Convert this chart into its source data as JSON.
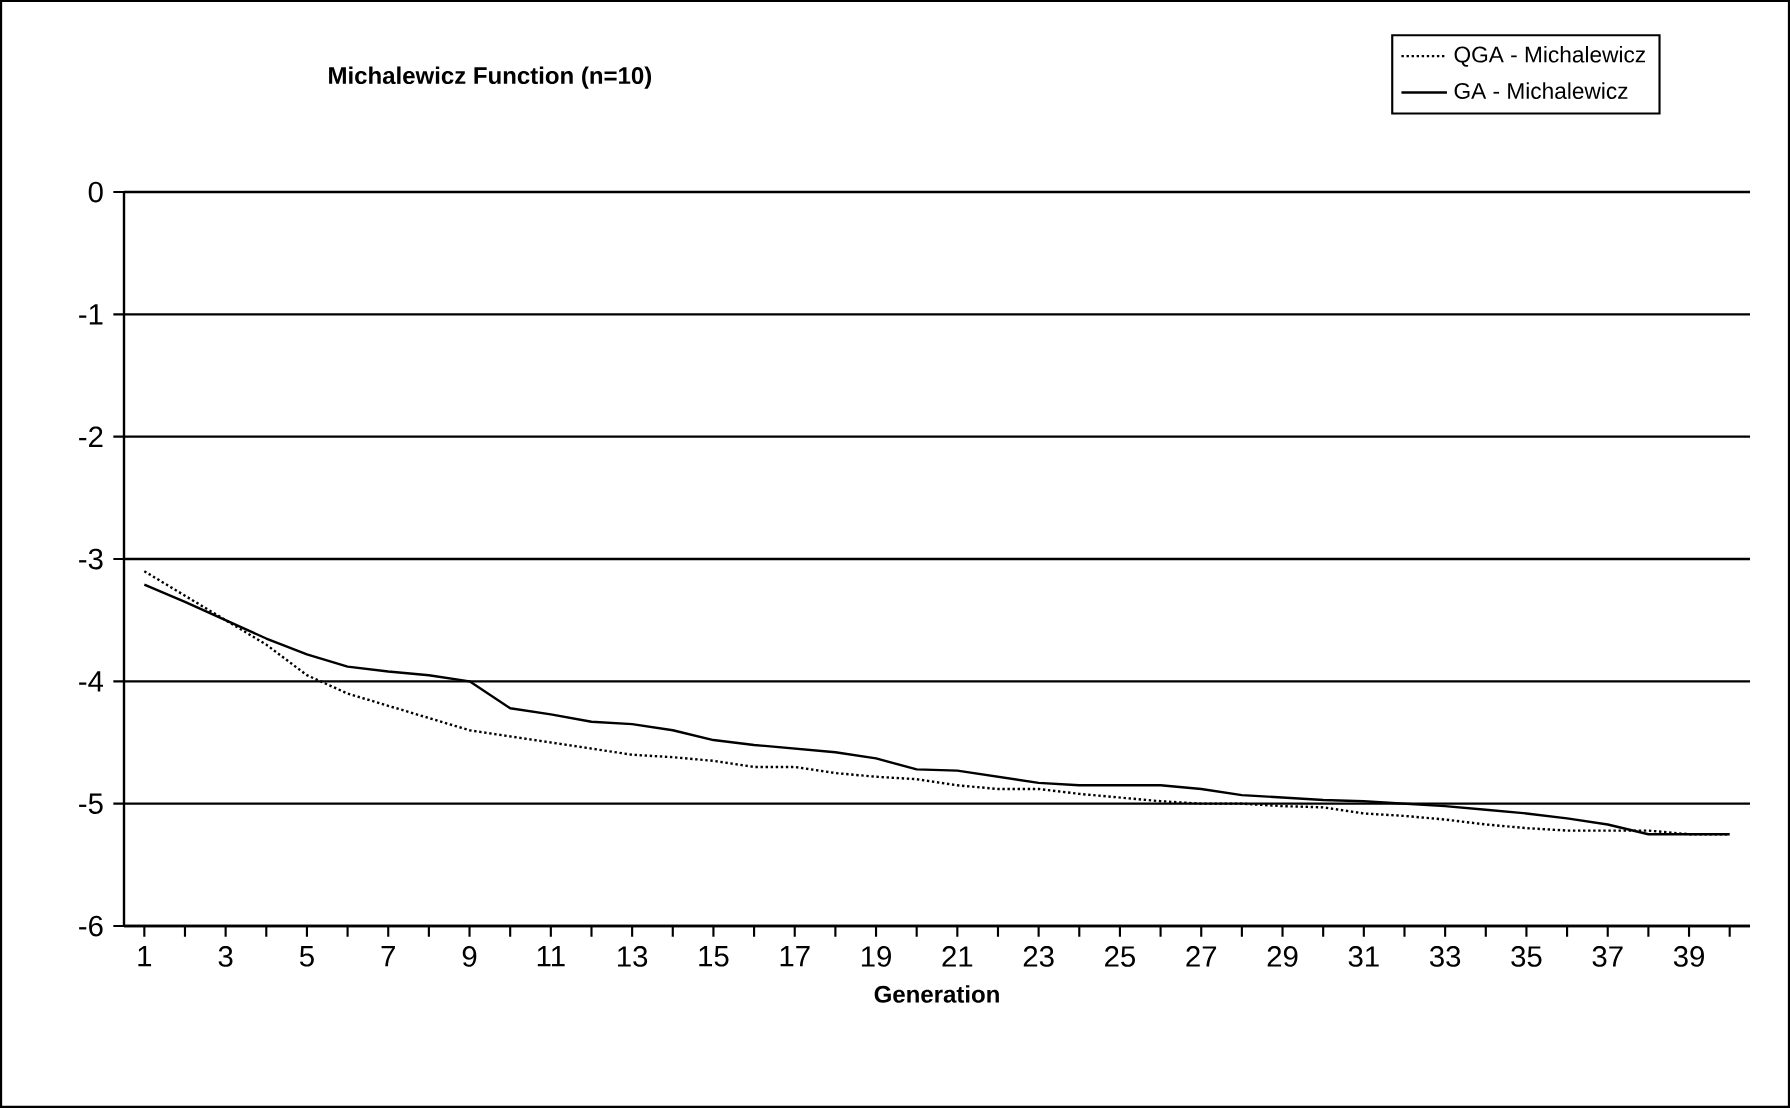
{
  "chart_data": {
    "type": "line",
    "title": "Michalewicz Function (n=10)",
    "xlabel": "Generation",
    "categories": [
      "1",
      null,
      "3",
      null,
      "5",
      null,
      "7",
      null,
      "9",
      null,
      "11",
      null,
      "13",
      null,
      "15",
      null,
      "17",
      null,
      "19",
      null,
      "21",
      null,
      "23",
      null,
      "25",
      null,
      "27",
      null,
      "29",
      null,
      "31",
      null,
      "33",
      null,
      "35",
      null,
      "37",
      null,
      "39",
      null
    ],
    "series": [
      {
        "name": "QGA - Michalewicz",
        "color": "#000000",
        "line_style": "dotted",
        "values": [
          -3.1,
          -3.3,
          -3.5,
          -3.7,
          -3.95,
          -4.1,
          -4.2,
          -4.3,
          -4.4,
          -4.45,
          -4.5,
          -4.55,
          -4.6,
          -4.62,
          -4.65,
          -4.7,
          -4.7,
          -4.75,
          -4.78,
          -4.8,
          -4.85,
          -4.88,
          -4.88,
          -4.92,
          -4.95,
          -4.98,
          -5.0,
          -5.0,
          -5.02,
          -5.03,
          -5.08,
          -5.1,
          -5.13,
          -5.17,
          -5.2,
          -5.22,
          -5.22,
          -5.22,
          -5.25,
          -5.25
        ]
      },
      {
        "name": "GA - Michalewicz",
        "color": "#000000",
        "line_style": "solid",
        "values": [
          -3.21,
          -3.35,
          -3.5,
          -3.65,
          -3.78,
          -3.88,
          -3.92,
          -3.95,
          -4.0,
          -4.22,
          -4.27,
          -4.33,
          -4.35,
          -4.4,
          -4.48,
          -4.52,
          -4.55,
          -4.58,
          -4.63,
          -4.72,
          -4.73,
          -4.78,
          -4.83,
          -4.85,
          -4.85,
          -4.85,
          -4.88,
          -4.93,
          -4.95,
          -4.97,
          -4.98,
          -5.0,
          -5.02,
          -5.05,
          -5.08,
          -5.12,
          -5.17,
          -5.25,
          -5.25,
          -5.25
        ]
      }
    ],
    "ylim": [
      -6,
      0
    ],
    "yticks": [
      -6,
      -5,
      -4,
      -3,
      -2,
      -1,
      0
    ],
    "grid": "y",
    "legend": "top right",
    "marker": "none"
  }
}
